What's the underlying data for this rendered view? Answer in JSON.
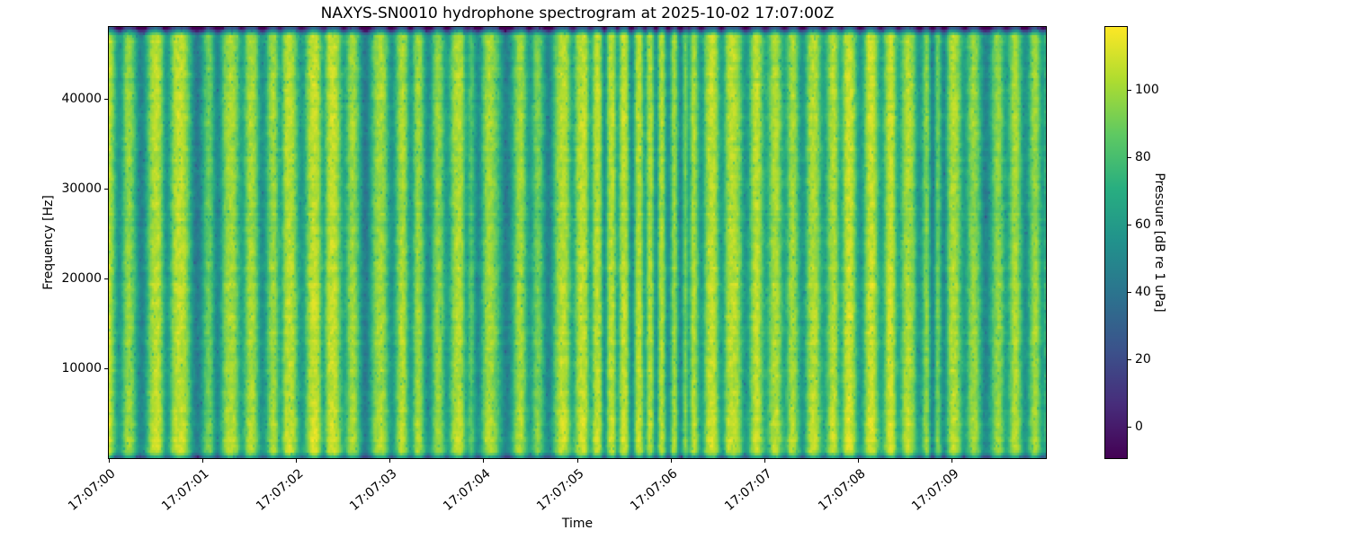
{
  "figure": {
    "title": "NAXYS-SN0010 hydrophone spectrogram at 2025-10-02 17:07:00Z",
    "xlabel": "Time",
    "ylabel": "Frequency [Hz]"
  },
  "chart_data": {
    "type": "heatmap",
    "subtype": "spectrogram",
    "title": "NAXYS-SN0010 hydrophone spectrogram at 2025-10-02 17:07:00Z",
    "xlabel": "Time",
    "ylabel": "Frequency [Hz]",
    "x_tick_labels": [
      "17:07:00",
      "17:07:01",
      "17:07:02",
      "17:07:03",
      "17:07:04",
      "17:07:05",
      "17:07:06",
      "17:07:07",
      "17:07:08",
      "17:07:09"
    ],
    "x_range_seconds": [
      0,
      10
    ],
    "y_ticks_hz": [
      10000,
      20000,
      30000,
      40000
    ],
    "y_range_hz": [
      0,
      48000
    ],
    "grid": false,
    "colormap": "viridis",
    "colormap_stops": [
      [
        0,
        "#440154"
      ],
      [
        0.125,
        "#472d7b"
      ],
      [
        0.25,
        "#3b528b"
      ],
      [
        0.375,
        "#2c728e"
      ],
      [
        0.5,
        "#21918c"
      ],
      [
        0.625,
        "#28ae80"
      ],
      [
        0.75,
        "#5ec962"
      ],
      [
        0.875,
        "#addc30"
      ],
      [
        1,
        "#fde725"
      ]
    ],
    "colorbar": {
      "label": "Pressure [dB re 1 uPa]",
      "ticks": [
        0,
        20,
        40,
        60,
        80,
        100
      ],
      "vmin": -9.3,
      "vmax": 118.7
    },
    "texture": {
      "description": "Broadband bright yellow-green background (~100-115 dB) with irregular dark teal vertical stripes (quiet gaps); stripe cadence ~0.2-0.3 s, denser thin stripes near 17:07:05.3-17:07:06.5; dark thin band along top edge (near Nyquist) and bottom edge.",
      "seed": 42,
      "base_level_db": 100,
      "column_variation_db": 13,
      "low_freq_boost_db": 5,
      "blob_noise_db": 12,
      "fine_noise_db": 5,
      "row_striation_db": 5,
      "band_dip_hz": 27000,
      "band_dip_db": 2.5,
      "stripes_t_sigma_depth": [
        [
          0.11,
          0.045,
          45
        ],
        [
          0.35,
          0.055,
          55
        ],
        [
          0.62,
          0.04,
          42
        ],
        [
          0.94,
          0.065,
          63
        ],
        [
          1.16,
          0.045,
          50
        ],
        [
          1.42,
          0.04,
          38
        ],
        [
          1.64,
          0.045,
          48
        ],
        [
          1.83,
          0.03,
          34
        ],
        [
          2.06,
          0.045,
          44
        ],
        [
          2.29,
          0.03,
          34
        ],
        [
          2.51,
          0.04,
          40
        ],
        [
          2.74,
          0.06,
          58
        ],
        [
          3.02,
          0.045,
          50
        ],
        [
          3.22,
          0.035,
          44
        ],
        [
          3.41,
          0.045,
          50
        ],
        [
          3.61,
          0.04,
          40
        ],
        [
          3.82,
          0.028,
          36
        ],
        [
          3.94,
          0.045,
          52
        ],
        [
          4.24,
          0.07,
          60
        ],
        [
          4.49,
          0.04,
          40
        ],
        [
          4.69,
          0.055,
          56
        ],
        [
          4.95,
          0.035,
          36
        ],
        [
          5.14,
          0.025,
          34
        ],
        [
          5.29,
          0.025,
          48
        ],
        [
          5.43,
          0.022,
          36
        ],
        [
          5.58,
          0.028,
          52
        ],
        [
          5.72,
          0.022,
          36
        ],
        [
          5.84,
          0.022,
          44
        ],
        [
          5.97,
          0.028,
          52
        ],
        [
          6.1,
          0.028,
          52
        ],
        [
          6.19,
          0.022,
          36
        ],
        [
          6.32,
          0.035,
          44
        ],
        [
          6.54,
          0.035,
          40
        ],
        [
          6.8,
          0.045,
          50
        ],
        [
          7.01,
          0.04,
          40
        ],
        [
          7.21,
          0.04,
          40
        ],
        [
          7.4,
          0.045,
          50
        ],
        [
          7.63,
          0.04,
          40
        ],
        [
          7.81,
          0.03,
          34
        ],
        [
          8.02,
          0.045,
          50
        ],
        [
          8.24,
          0.04,
          40
        ],
        [
          8.43,
          0.035,
          36
        ],
        [
          8.65,
          0.04,
          46
        ],
        [
          8.79,
          0.028,
          58
        ],
        [
          8.91,
          0.035,
          50
        ],
        [
          9.13,
          0.04,
          40
        ],
        [
          9.36,
          0.055,
          56
        ],
        [
          9.58,
          0.04,
          40
        ],
        [
          9.78,
          0.045,
          50
        ],
        [
          9.97,
          0.035,
          44
        ]
      ]
    }
  }
}
